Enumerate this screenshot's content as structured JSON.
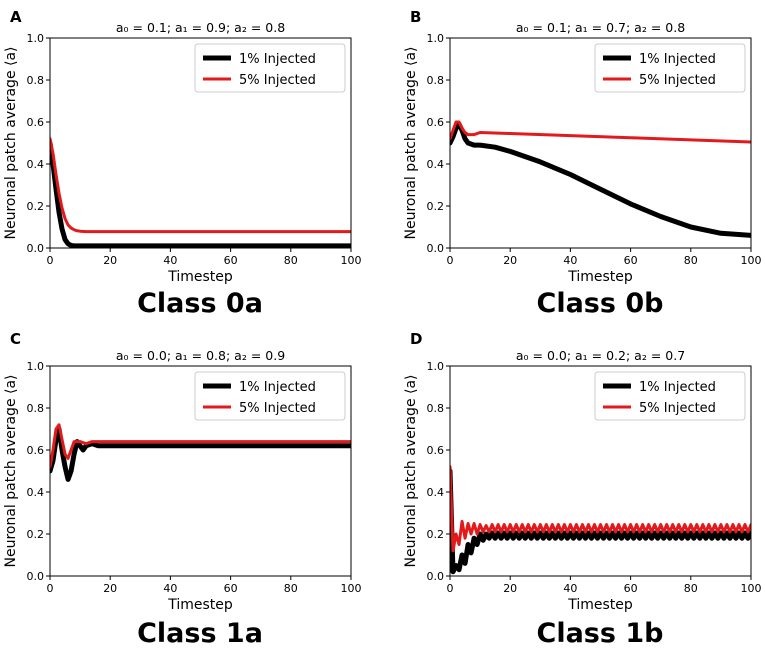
{
  "figure": {
    "series_names": [
      "1% Injected",
      "5% Injected"
    ],
    "series_colors": [
      "#000000",
      "#e31a1c"
    ]
  },
  "chart_data": [
    {
      "type": "line",
      "panel": "A",
      "title": "a₀ = 0.1; a₁ = 0.9; a₂ = 0.8",
      "class_label": "Class 0a",
      "xlabel": "Timestep",
      "ylabel": "Neuronal patch average ⟨a⟩",
      "xlim": [
        0,
        100
      ],
      "ylim": [
        0,
        1
      ],
      "xticks": [
        0,
        20,
        40,
        60,
        80,
        100
      ],
      "yticks": [
        0.0,
        0.2,
        0.4,
        0.6,
        0.8,
        1.0
      ],
      "xtick_labels": [
        "0",
        "20",
        "40",
        "60",
        "80",
        "100"
      ],
      "ytick_labels": [
        "0.0",
        "0.2",
        "0.4",
        "0.6",
        "0.8",
        "1.0"
      ],
      "legend": "top-right",
      "series": [
        {
          "name": "1% Injected",
          "x": [
            0,
            1,
            2,
            3,
            4,
            5,
            6,
            7,
            8,
            10,
            15,
            20,
            100
          ],
          "values": [
            0.5,
            0.4,
            0.28,
            0.17,
            0.09,
            0.04,
            0.02,
            0.012,
            0.01,
            0.01,
            0.01,
            0.01,
            0.01
          ]
        },
        {
          "name": "5% Injected",
          "x": [
            0,
            1,
            2,
            3,
            4,
            5,
            6,
            7,
            8,
            9,
            10,
            12,
            15,
            20,
            100
          ],
          "values": [
            0.52,
            0.45,
            0.35,
            0.26,
            0.19,
            0.14,
            0.11,
            0.095,
            0.087,
            0.082,
            0.08,
            0.078,
            0.078,
            0.078,
            0.078
          ]
        }
      ]
    },
    {
      "type": "line",
      "panel": "B",
      "title": "a₀ = 0.1; a₁ = 0.7; a₂ = 0.8",
      "class_label": "Class 0b",
      "xlabel": "Timestep",
      "ylabel": "Neuronal patch average ⟨a⟩",
      "xlim": [
        0,
        100
      ],
      "ylim": [
        0,
        1
      ],
      "xticks": [
        0,
        20,
        40,
        60,
        80,
        100
      ],
      "yticks": [
        0.0,
        0.2,
        0.4,
        0.6,
        0.8,
        1.0
      ],
      "xtick_labels": [
        "0",
        "20",
        "40",
        "60",
        "80",
        "100"
      ],
      "ytick_labels": [
        "0.0",
        "0.2",
        "0.4",
        "0.6",
        "0.8",
        "1.0"
      ],
      "legend": "top-right",
      "series": [
        {
          "name": "1% Injected",
          "x": [
            0,
            1,
            2,
            3,
            4,
            5,
            6,
            8,
            10,
            15,
            20,
            30,
            40,
            50,
            60,
            70,
            80,
            90,
            100
          ],
          "values": [
            0.5,
            0.53,
            0.57,
            0.59,
            0.56,
            0.52,
            0.5,
            0.49,
            0.49,
            0.48,
            0.46,
            0.41,
            0.35,
            0.28,
            0.21,
            0.15,
            0.1,
            0.07,
            0.06
          ]
        },
        {
          "name": "5% Injected",
          "x": [
            0,
            1,
            2,
            3,
            4,
            5,
            6,
            8,
            10,
            20,
            40,
            60,
            80,
            100
          ],
          "values": [
            0.52,
            0.56,
            0.6,
            0.6,
            0.57,
            0.55,
            0.54,
            0.54,
            0.55,
            0.545,
            0.535,
            0.525,
            0.515,
            0.505
          ]
        }
      ]
    },
    {
      "type": "line",
      "panel": "C",
      "title": "a₀ = 0.0; a₁ = 0.8; a₂ = 0.9",
      "class_label": "Class 1a",
      "xlabel": "Timestep",
      "ylabel": "Neuronal patch average ⟨a⟩",
      "xlim": [
        0,
        100
      ],
      "ylim": [
        0,
        1
      ],
      "xticks": [
        0,
        20,
        40,
        60,
        80,
        100
      ],
      "yticks": [
        0.0,
        0.2,
        0.4,
        0.6,
        0.8,
        1.0
      ],
      "xtick_labels": [
        "0",
        "20",
        "40",
        "60",
        "80",
        "100"
      ],
      "ytick_labels": [
        "0.0",
        "0.2",
        "0.4",
        "0.6",
        "0.8",
        "1.0"
      ],
      "legend": "top-right",
      "series": [
        {
          "name": "1% Injected",
          "x": [
            0,
            1,
            2,
            3,
            4,
            5,
            6,
            7,
            8,
            9,
            10,
            11,
            12,
            14,
            16,
            18,
            20,
            30,
            100
          ],
          "values": [
            0.5,
            0.55,
            0.65,
            0.7,
            0.6,
            0.52,
            0.46,
            0.5,
            0.58,
            0.64,
            0.62,
            0.6,
            0.62,
            0.63,
            0.62,
            0.62,
            0.62,
            0.62,
            0.62
          ]
        },
        {
          "name": "5% Injected",
          "x": [
            0,
            1,
            2,
            3,
            4,
            5,
            6,
            7,
            8,
            10,
            12,
            14,
            16,
            20,
            30,
            100
          ],
          "values": [
            0.52,
            0.6,
            0.7,
            0.72,
            0.65,
            0.58,
            0.56,
            0.6,
            0.64,
            0.64,
            0.63,
            0.64,
            0.64,
            0.64,
            0.64,
            0.64
          ]
        }
      ]
    },
    {
      "type": "line",
      "panel": "D",
      "title": "a₀ = 0.0; a₁ = 0.2; a₂ = 0.7",
      "class_label": "Class 1b",
      "xlabel": "Timestep",
      "ylabel": "Neuronal patch average ⟨a⟩",
      "xlim": [
        0,
        100
      ],
      "ylim": [
        0,
        1
      ],
      "xticks": [
        0,
        20,
        40,
        60,
        80,
        100
      ],
      "yticks": [
        0.0,
        0.2,
        0.4,
        0.6,
        0.8,
        1.0
      ],
      "xtick_labels": [
        "0",
        "20",
        "40",
        "60",
        "80",
        "100"
      ],
      "ytick_labels": [
        "0.0",
        "0.2",
        "0.4",
        "0.6",
        "0.8",
        "1.0"
      ],
      "legend": "top-right",
      "series": [
        {
          "name": "1% Injected",
          "x": [
            0,
            1,
            2,
            3,
            4,
            5,
            6,
            7,
            8,
            9,
            10,
            11,
            12
          ],
          "values": [
            0.5,
            0.02,
            0.05,
            0.03,
            0.1,
            0.06,
            0.15,
            0.11,
            0.18,
            0.15,
            0.2,
            0.17,
            0.2
          ],
          "osc_from": 12,
          "osc_high": 0.205,
          "osc_low": 0.18
        },
        {
          "name": "5% Injected",
          "x": [
            0,
            1,
            2,
            3,
            4,
            5,
            6,
            7,
            8,
            9,
            10,
            11,
            12
          ],
          "values": [
            0.52,
            0.12,
            0.2,
            0.15,
            0.26,
            0.18,
            0.25,
            0.2,
            0.25,
            0.2,
            0.245,
            0.21,
            0.24
          ],
          "osc_from": 12,
          "osc_high": 0.245,
          "osc_low": 0.21
        }
      ]
    }
  ]
}
